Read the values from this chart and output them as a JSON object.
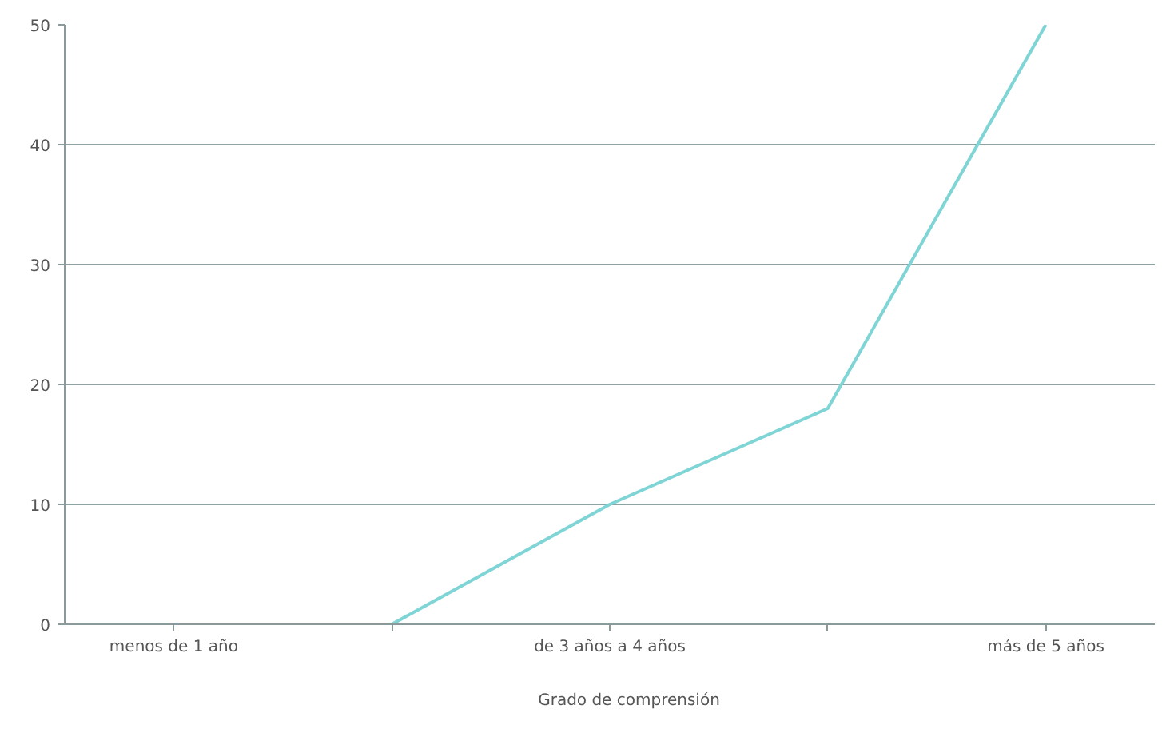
{
  "chart_data": {
    "type": "line",
    "categories": [
      "menos de 1 año",
      null,
      "de 3 años a 4 años",
      null,
      "más de 5 años"
    ],
    "series": [
      {
        "name": "Grado de comprensión",
        "color": "#7fd4d6",
        "values": [
          0,
          0,
          10,
          18,
          50
        ]
      }
    ],
    "ylim": [
      0,
      50
    ],
    "yticks": [
      0,
      10,
      20,
      30,
      40,
      50
    ],
    "grid": "y",
    "legend": "bottom"
  }
}
